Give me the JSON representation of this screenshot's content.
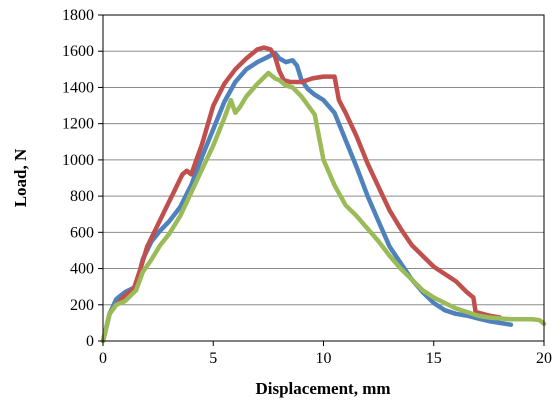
{
  "chart_data": {
    "type": "line",
    "xlabel": "Displacement, mm",
    "ylabel": "Load, N",
    "xlim": [
      0,
      20
    ],
    "ylim": [
      0,
      1800
    ],
    "x_ticks": [
      0,
      5,
      10,
      15,
      20
    ],
    "y_ticks": [
      0,
      200,
      400,
      600,
      800,
      1000,
      1200,
      1400,
      1600,
      1800
    ],
    "x_tick_labels": [
      "0",
      "5",
      "10",
      "15",
      "20"
    ],
    "y_tick_labels": [
      "0",
      "200",
      "400",
      "600",
      "800",
      "1000",
      "1200",
      "1400",
      "1600",
      "1800"
    ],
    "grid": "horizontal",
    "legend": "none",
    "series": [
      {
        "color": "#4F81BD",
        "x": [
          0,
          0.3,
          0.6,
          1.0,
          1.5,
          1.8,
          2.2,
          2.6,
          3.0,
          3.5,
          4.0,
          4.5,
          5.0,
          5.5,
          6.0,
          6.5,
          7.0,
          7.5,
          7.8,
          8.0,
          8.3,
          8.6,
          8.8,
          9.0,
          9.3,
          9.6,
          10.0,
          10.5,
          11.0,
          11.5,
          12.0,
          12.5,
          13.0,
          13.5,
          14.0,
          14.5,
          15.0,
          15.5,
          16.0,
          16.5,
          17.0,
          17.5,
          18.0,
          18.5
        ],
        "y": [
          0,
          150,
          230,
          270,
          300,
          450,
          550,
          610,
          660,
          740,
          860,
          1020,
          1170,
          1320,
          1430,
          1500,
          1540,
          1570,
          1590,
          1560,
          1540,
          1550,
          1520,
          1440,
          1390,
          1360,
          1330,
          1260,
          1110,
          960,
          800,
          660,
          520,
          430,
          340,
          270,
          210,
          170,
          150,
          140,
          125,
          110,
          100,
          90
        ]
      },
      {
        "color": "#C0504D",
        "x": [
          0,
          0.3,
          0.6,
          1.0,
          1.4,
          1.7,
          2.0,
          2.4,
          2.8,
          3.2,
          3.6,
          3.8,
          4.0,
          4.5,
          5.0,
          5.5,
          6.0,
          6.5,
          7.0,
          7.3,
          7.6,
          7.8,
          8.0,
          8.2,
          8.5,
          9.0,
          9.5,
          10.0,
          10.5,
          10.7,
          11.0,
          11.5,
          12.0,
          12.5,
          13.0,
          13.5,
          14.0,
          14.5,
          15.0,
          15.5,
          16.0,
          16.5,
          16.8,
          16.9,
          17.5,
          18.0
        ],
        "y": [
          0,
          150,
          200,
          250,
          290,
          400,
          520,
          620,
          720,
          820,
          920,
          940,
          920,
          1090,
          1300,
          1420,
          1500,
          1560,
          1610,
          1620,
          1610,
          1570,
          1490,
          1440,
          1430,
          1430,
          1450,
          1460,
          1460,
          1330,
          1260,
          1130,
          980,
          850,
          720,
          620,
          530,
          470,
          410,
          370,
          330,
          270,
          240,
          160,
          140,
          130
        ]
      },
      {
        "color": "#9BBB59",
        "x": [
          0,
          0.3,
          0.6,
          1.0,
          1.5,
          1.8,
          2.2,
          2.6,
          3.0,
          3.5,
          4.0,
          4.5,
          5.0,
          5.5,
          5.8,
          6.0,
          6.2,
          6.5,
          7.0,
          7.5,
          7.8,
          8.0,
          8.3,
          8.6,
          9.0,
          9.3,
          9.6,
          10.0,
          10.5,
          11.0,
          11.5,
          12.0,
          12.5,
          13.0,
          13.5,
          14.0,
          14.5,
          15.0,
          15.5,
          16.0,
          16.5,
          17.0,
          17.5,
          18.0,
          18.5,
          19.0,
          19.5,
          19.8,
          20.0
        ],
        "y": [
          0,
          150,
          200,
          220,
          280,
          380,
          450,
          530,
          590,
          690,
          820,
          950,
          1080,
          1230,
          1330,
          1260,
          1290,
          1350,
          1420,
          1480,
          1450,
          1440,
          1410,
          1400,
          1350,
          1300,
          1250,
          1000,
          860,
          750,
          690,
          620,
          550,
          470,
          400,
          340,
          280,
          240,
          210,
          180,
          160,
          140,
          130,
          125,
          120,
          120,
          120,
          115,
          95
        ]
      }
    ]
  }
}
